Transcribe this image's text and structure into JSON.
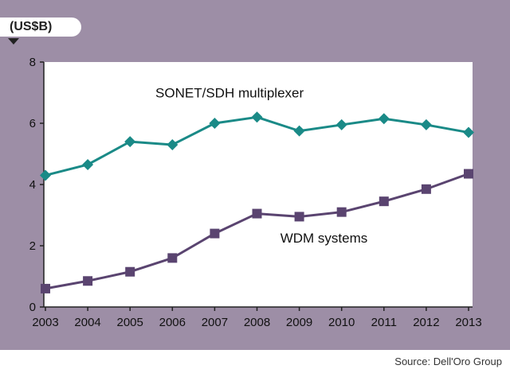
{
  "source": "Source: Dell'Oro Group",
  "colors": {
    "background": "#9d8ea6",
    "plot_area": "#ffffff",
    "sonet": "#1a8a87",
    "wdm": "#5a4470"
  },
  "chart_data": {
    "type": "line",
    "title": "",
    "xlabel": "",
    "ylabel": "(US$B)",
    "ylim": [
      0,
      8
    ],
    "yticks": [
      0,
      2,
      4,
      6,
      8
    ],
    "grid": false,
    "categories": [
      "2003",
      "2004",
      "2005",
      "2006",
      "2007",
      "2008",
      "2009",
      "2010",
      "2011",
      "2012",
      "2013"
    ],
    "series": [
      {
        "name": "SONET/SDH multiplexer",
        "marker": "diamond",
        "color": "#1a8a87",
        "values": [
          4.3,
          4.65,
          5.4,
          5.3,
          6.0,
          6.2,
          5.75,
          5.95,
          6.15,
          5.95,
          5.7
        ]
      },
      {
        "name": "WDM systems",
        "marker": "square",
        "color": "#5a4470",
        "values": [
          0.6,
          0.85,
          1.15,
          1.6,
          2.4,
          3.05,
          2.95,
          3.1,
          3.45,
          3.85,
          4.35
        ]
      }
    ]
  }
}
